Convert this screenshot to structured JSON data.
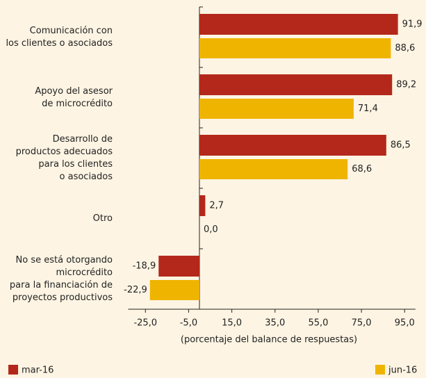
{
  "chart_data": {
    "type": "bar",
    "orientation": "horizontal",
    "categories": [
      [
        "Comunicación con",
        "los clientes o asociados"
      ],
      [
        "Apoyo del asesor",
        "de microcrédito"
      ],
      [
        "Desarrollo de",
        "productos adecuados",
        "para los clientes",
        "o asociados"
      ],
      [
        "Otro"
      ],
      [
        "No se está otorgando",
        "microcrédito",
        "para la financiación de",
        "proyectos productivos"
      ]
    ],
    "series": [
      {
        "name": "mar-16",
        "color": "#b3281a",
        "values": [
          91.9,
          89.2,
          86.5,
          2.7,
          -18.9
        ],
        "value_labels": [
          "91,9",
          "89,2",
          "86,5",
          "2,7",
          "-18,9"
        ]
      },
      {
        "name": "jun-16",
        "color": "#efb400",
        "values": [
          88.6,
          71.4,
          68.6,
          0.0,
          -22.9
        ],
        "value_labels": [
          "88,6",
          "71,4",
          "68,6",
          "0,0",
          "-22,9"
        ]
      }
    ],
    "x_label": "(porcentaje del balance de respuestas)",
    "xlim": [
      -33,
      100
    ],
    "xticks": [
      {
        "value": -25,
        "label": "-25,0"
      },
      {
        "value": -5,
        "label": "-5,0"
      },
      {
        "value": 15,
        "label": "15,0"
      },
      {
        "value": 35,
        "label": "35,0"
      },
      {
        "value": 55,
        "label": "55,0"
      },
      {
        "value": 75,
        "label": "75,0"
      },
      {
        "value": 95,
        "label": "95,0"
      }
    ],
    "legend": "bottom"
  }
}
